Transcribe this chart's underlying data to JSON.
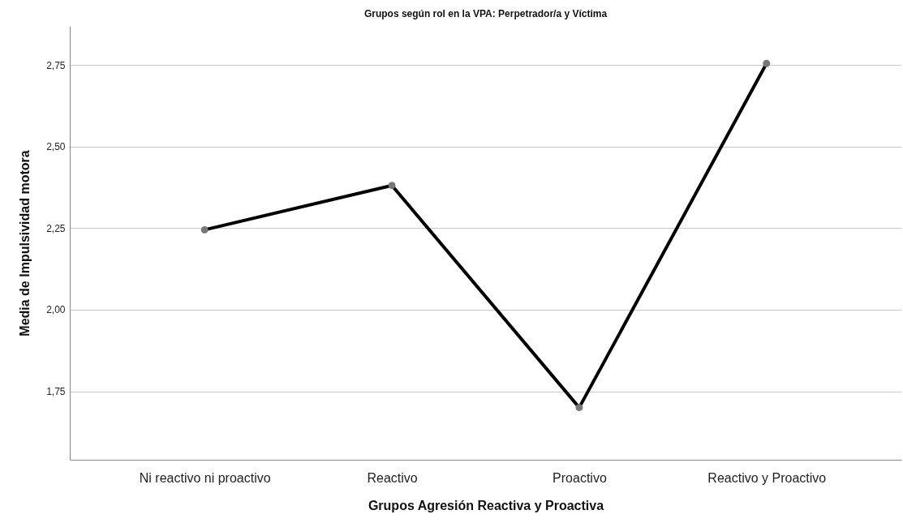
{
  "chart_data": {
    "type": "line",
    "title": "Grupos según rol en la VPA: Perpetrador/a y Víctima",
    "xlabel": "Grupos Agresión Reactiva y Proactiva",
    "ylabel": "Media de Impulsividad motora",
    "categories": [
      "Ni reactivo ni proactivo",
      "Reactivo",
      "Proactivo",
      "Reactivo y Proactivo"
    ],
    "series": [
      {
        "color": "#000000",
        "values": [
          2.245,
          2.381,
          1.7,
          2.755
        ]
      }
    ],
    "ylim": [
      1.54,
      2.87
    ],
    "yticks": [
      {
        "value": 1.75,
        "label": "1,75"
      },
      {
        "value": 2.0,
        "label": "2,00"
      },
      {
        "value": 2.25,
        "label": "2,25"
      },
      {
        "value": 2.5,
        "label": "2,50"
      },
      {
        "value": 2.75,
        "label": "2,75"
      }
    ],
    "grid": "y",
    "legend": false,
    "marker": "circle",
    "line_style": "solid"
  }
}
